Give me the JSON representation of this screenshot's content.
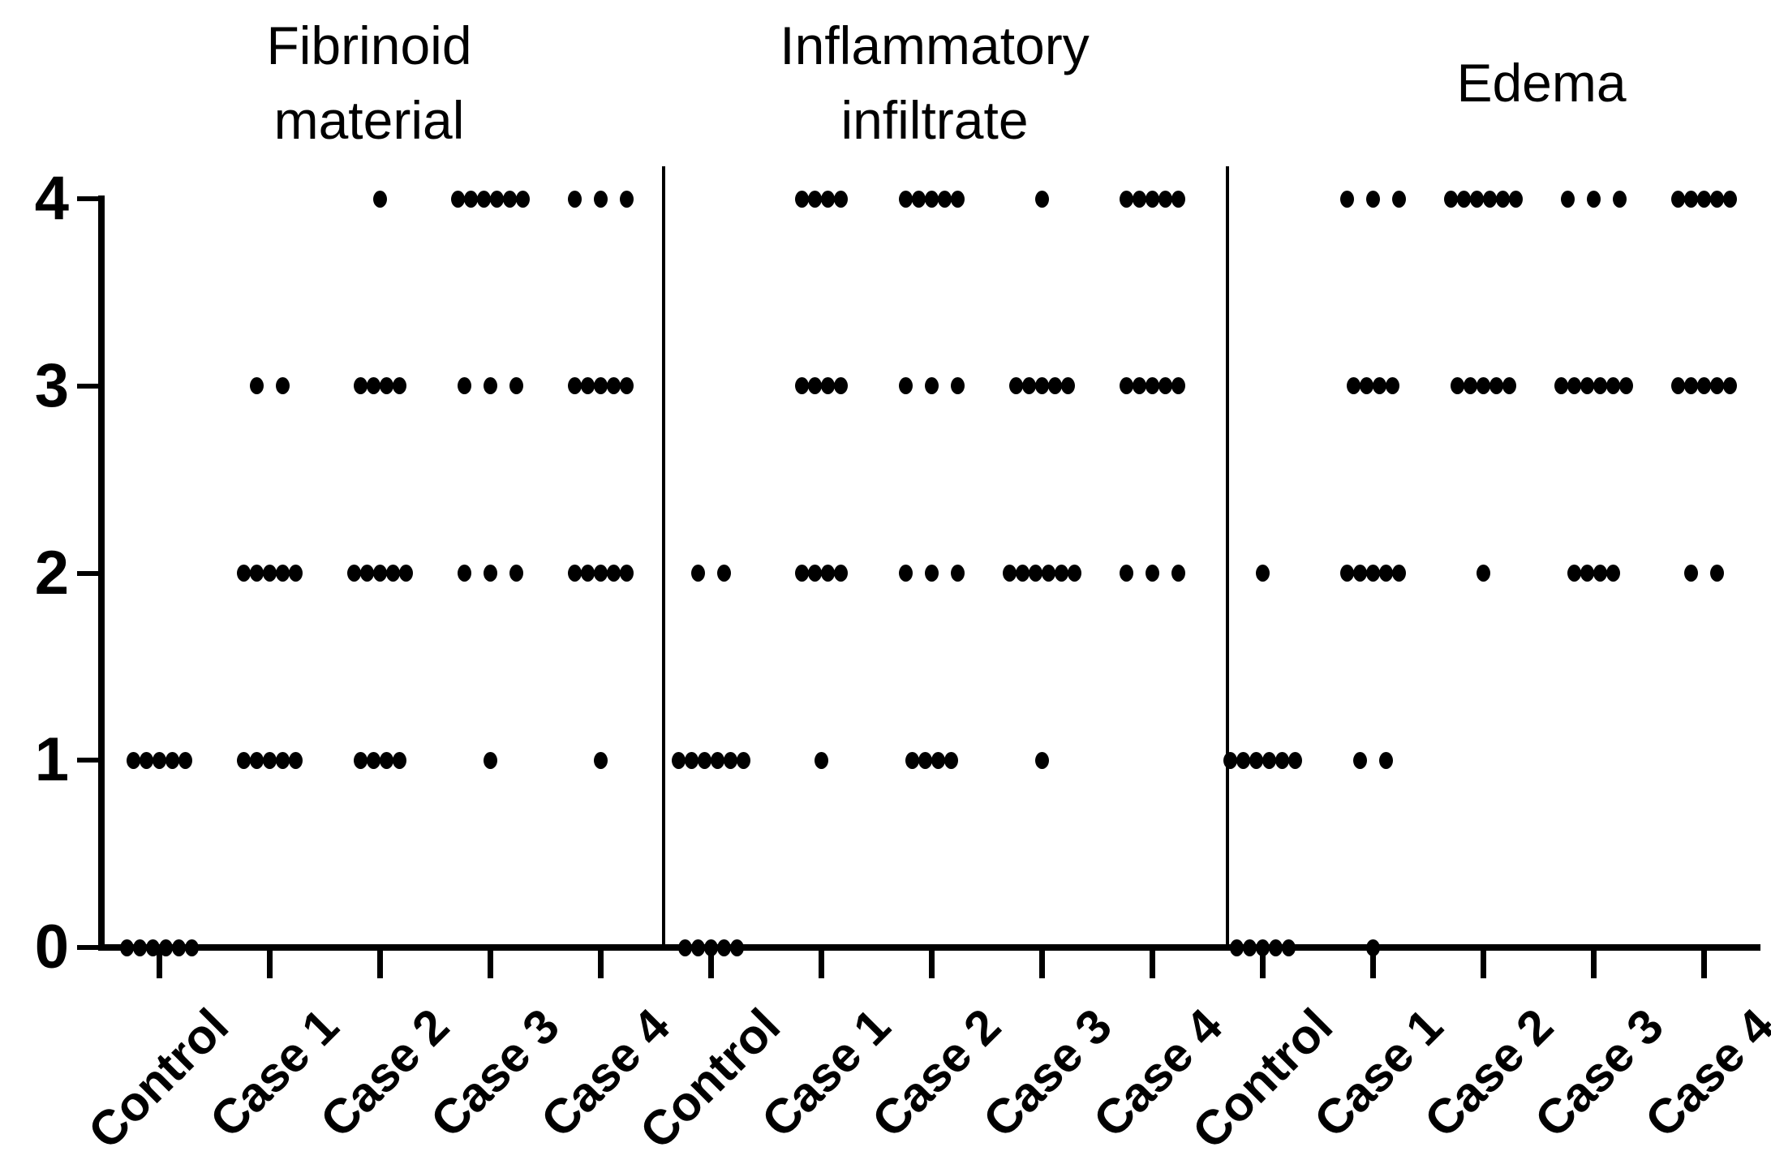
{
  "figure": {
    "background_color": "#ffffff",
    "ink_color": "#000000"
  },
  "chart_data": {
    "type": "scatter",
    "subtype": "dot-plot-of-scores",
    "title": "",
    "xlabel": "",
    "ylabel": "",
    "ylim": [
      0,
      4
    ],
    "y_ticks": [
      "0",
      "1",
      "2",
      "3",
      "4"
    ],
    "grid": "off",
    "legend": "none",
    "x_labels": [
      "Control",
      "Case 1",
      "Case 2",
      "Case 3",
      "Case 4"
    ],
    "panels": [
      {
        "title": "Fibrinoid material",
        "title_lines": [
          "Fibrinoid",
          "material"
        ],
        "groups": [
          {
            "label": "Control",
            "counts_by_score": [
              6,
              5,
              0,
              0,
              0
            ]
          },
          {
            "label": "Case 1",
            "counts_by_score": [
              0,
              5,
              5,
              2,
              0
            ]
          },
          {
            "label": "Case 2",
            "counts_by_score": [
              0,
              4,
              5,
              4,
              1
            ]
          },
          {
            "label": "Case 3",
            "counts_by_score": [
              0,
              1,
              3,
              3,
              6
            ]
          },
          {
            "label": "Case 4",
            "counts_by_score": [
              0,
              1,
              5,
              5,
              3
            ]
          }
        ]
      },
      {
        "title": "Inflammatory infiltrate",
        "title_lines": [
          "Inflammatory",
          "infiltrate"
        ],
        "groups": [
          {
            "label": "Control",
            "counts_by_score": [
              5,
              6,
              2,
              0,
              0
            ]
          },
          {
            "label": "Case 1",
            "counts_by_score": [
              0,
              1,
              4,
              4,
              4
            ]
          },
          {
            "label": "Case 2",
            "counts_by_score": [
              0,
              4,
              3,
              3,
              5
            ]
          },
          {
            "label": "Case 3",
            "counts_by_score": [
              0,
              1,
              6,
              5,
              1
            ]
          },
          {
            "label": "Case 4",
            "counts_by_score": [
              0,
              0,
              3,
              5,
              5
            ]
          }
        ]
      },
      {
        "title": "Edema",
        "title_lines": [
          "Edema"
        ],
        "groups": [
          {
            "label": "Control",
            "counts_by_score": [
              5,
              6,
              1,
              0,
              0
            ]
          },
          {
            "label": "Case 1",
            "counts_by_score": [
              1,
              2,
              5,
              4,
              3
            ]
          },
          {
            "label": "Case 2",
            "counts_by_score": [
              0,
              0,
              1,
              5,
              6
            ]
          },
          {
            "label": "Case 3",
            "counts_by_score": [
              0,
              0,
              4,
              6,
              3
            ]
          },
          {
            "label": "Case 4",
            "counts_by_score": [
              0,
              0,
              2,
              5,
              5
            ]
          }
        ]
      }
    ]
  }
}
